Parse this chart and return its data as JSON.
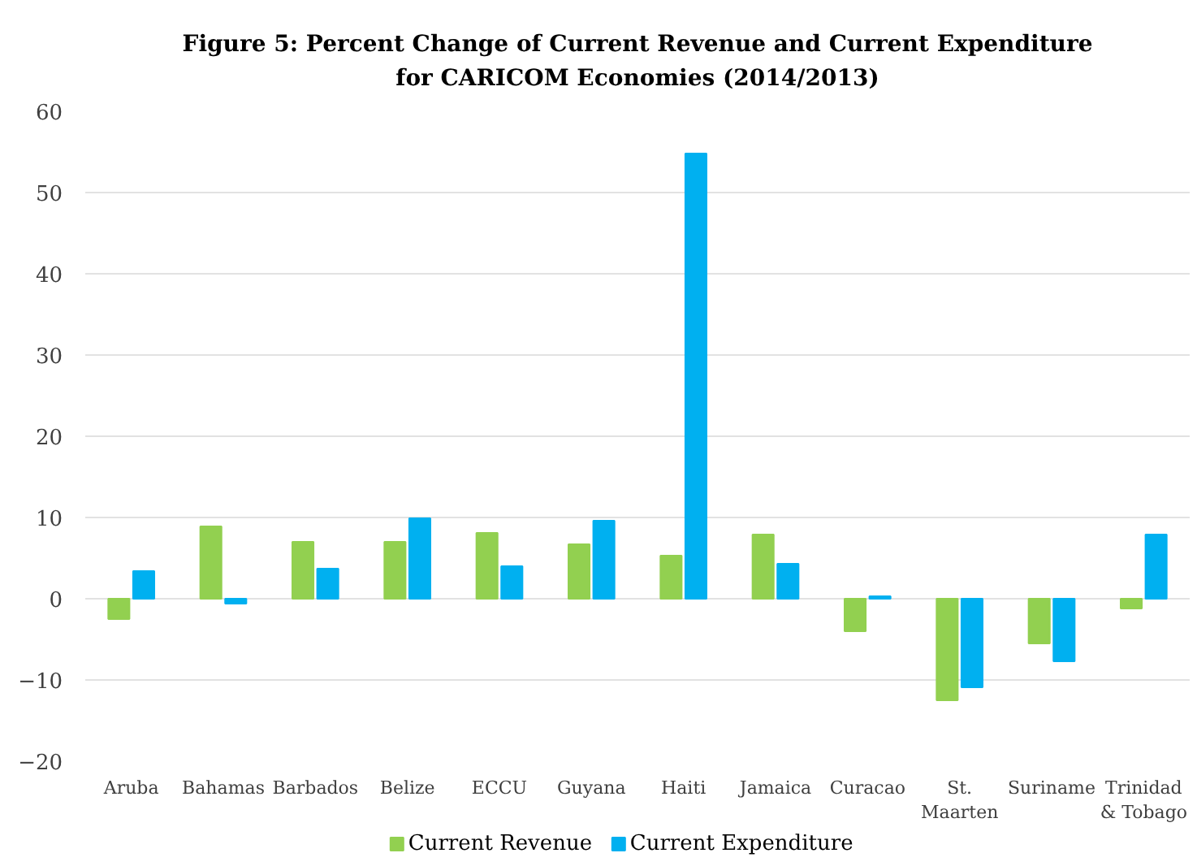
{
  "chart_data": {
    "type": "bar",
    "title": "Figure 5: Percent Change of Current Revenue and Current Expenditure for CARICOM Economies (2014/2013)",
    "categories": [
      "Aruba",
      "Bahamas",
      "Barbados",
      "Belize",
      "ECCU",
      "Guyana",
      "Haiti",
      "Jamaica",
      "Curacao",
      "St. Maarten",
      "Suriname",
      "Trinidad & Tobago"
    ],
    "series": [
      {
        "name": "Current Revenue",
        "color": "#92d050",
        "values": [
          -2.5,
          8.9,
          7.0,
          7.0,
          8.1,
          6.7,
          5.3,
          7.9,
          -4.0,
          -12.5,
          -5.5,
          -1.2
        ]
      },
      {
        "name": "Current Expenditure",
        "color": "#00b0f0",
        "values": [
          3.4,
          -0.6,
          3.7,
          9.9,
          4.0,
          9.6,
          54.8,
          4.3,
          0.3,
          -10.9,
          -7.7,
          7.9
        ]
      }
    ],
    "ylim": [
      -20,
      60
    ],
    "yticks": [
      -20,
      -10,
      0,
      10,
      20,
      30,
      40,
      50,
      60
    ],
    "grid": "y",
    "legend": "bottom"
  }
}
